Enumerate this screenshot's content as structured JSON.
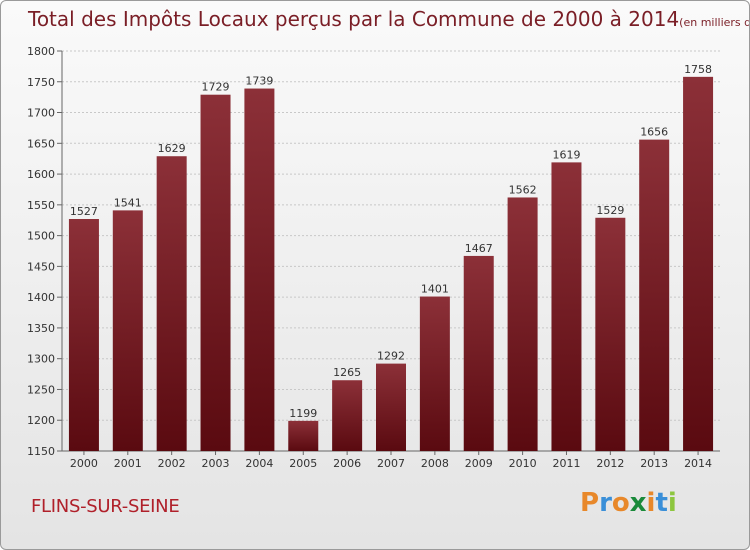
{
  "header": {
    "title": "Total des Impôts Locaux perçus par la Commune de 2000 à 2014",
    "unit": "(en milliers d'€)"
  },
  "footer": {
    "commune": "FLINS-SUR-SEINE",
    "brand": "Proxiti"
  },
  "colors": {
    "bar_top": "#8c3038",
    "bar_bottom": "#5a0a10",
    "title": "#7a1e26",
    "commune": "#b0202a",
    "brand_letters": [
      "#e8882a",
      "#3a8fd8",
      "#e8882a",
      "#1a8a3a",
      "#e8882a",
      "#3a8fd8",
      "#8dc63f"
    ]
  },
  "chart_data": {
    "type": "bar",
    "title": "Total des Impôts Locaux perçus par la Commune de 2000 à 2014",
    "xlabel": "",
    "ylabel": "",
    "ylim": [
      1150,
      1800
    ],
    "yticks": [
      1150,
      1200,
      1250,
      1300,
      1350,
      1400,
      1450,
      1500,
      1550,
      1600,
      1650,
      1700,
      1750,
      1800
    ],
    "grid": true,
    "categories": [
      "2000",
      "2001",
      "2002",
      "2003",
      "2004",
      "2005",
      "2006",
      "2007",
      "2008",
      "2009",
      "2010",
      "2011",
      "2012",
      "2013",
      "2014"
    ],
    "values": [
      1527,
      1541,
      1629,
      1729,
      1739,
      1199,
      1265,
      1292,
      1401,
      1467,
      1562,
      1619,
      1529,
      1656,
      1758
    ]
  }
}
